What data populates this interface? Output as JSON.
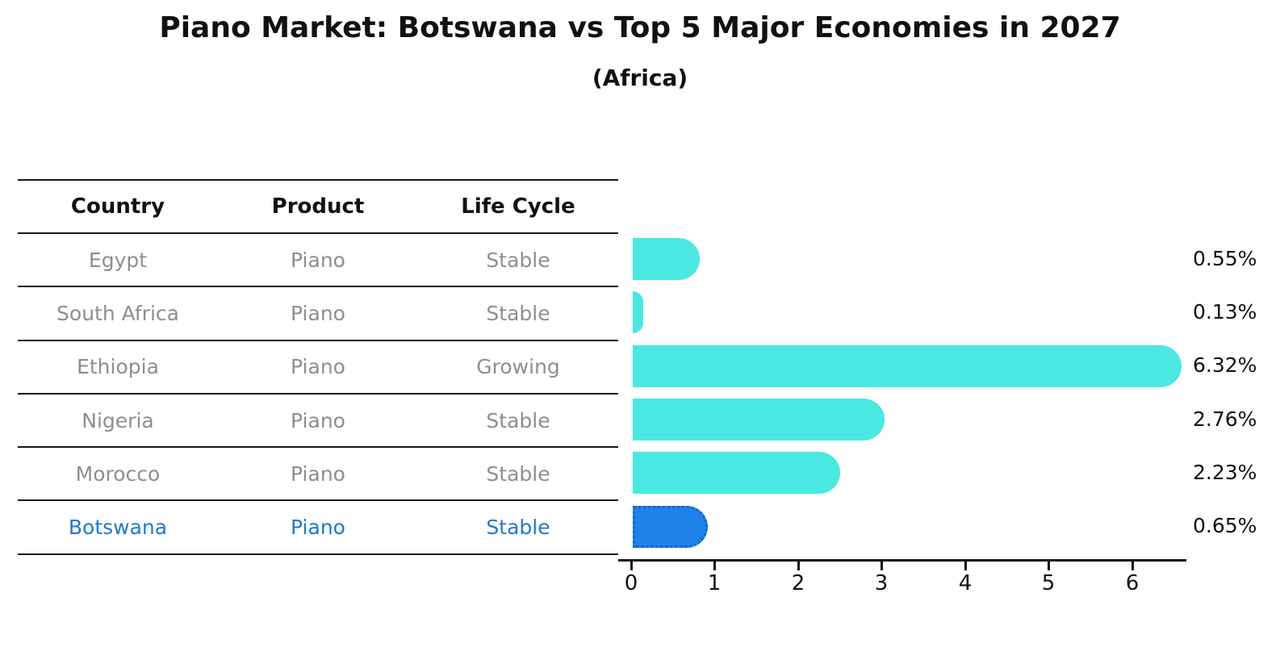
{
  "title": "Piano Market: Botswana vs Top 5 Major Economies in 2027",
  "subtitle": "(Africa)",
  "table": {
    "columns": [
      "Country",
      "Product",
      "Life Cycle"
    ],
    "rows": [
      {
        "country": "Egypt",
        "product": "Piano",
        "life_cycle": "Stable",
        "highlight": false
      },
      {
        "country": "South Africa",
        "product": "Piano",
        "life_cycle": "Stable",
        "highlight": false
      },
      {
        "country": "Ethiopia",
        "product": "Piano",
        "life_cycle": "Growing",
        "highlight": false
      },
      {
        "country": "Nigeria",
        "product": "Piano",
        "life_cycle": "Stable",
        "highlight": false
      },
      {
        "country": "Morocco",
        "product": "Piano",
        "life_cycle": "Stable",
        "highlight": false
      },
      {
        "country": "Botswana",
        "product": "Piano",
        "life_cycle": "Stable",
        "highlight": true
      }
    ]
  },
  "chart_data": {
    "type": "bar",
    "orientation": "horizontal",
    "title": "Piano Market: Botswana vs Top 5 Major Economies in 2027",
    "subtitle": "(Africa)",
    "categories": [
      "Egypt",
      "South Africa",
      "Ethiopia",
      "Nigeria",
      "Morocco",
      "Botswana"
    ],
    "values": [
      0.55,
      0.13,
      6.32,
      2.76,
      2.23,
      0.65
    ],
    "value_labels": [
      "0.55%",
      "0.13%",
      "6.32%",
      "2.76%",
      "2.23%",
      "0.65%"
    ],
    "xticks": [
      0,
      1,
      2,
      3,
      4,
      5,
      6
    ],
    "xlim": [
      0,
      6.64
    ],
    "grid": false,
    "legend": null,
    "bar_color": "#4ae8e0",
    "highlight_index": 5,
    "highlight_bar_color": "#1f82e8",
    "highlight_border_color": "#1563cc",
    "highlight_text_color": "#2079cf",
    "axis_color": "#111111",
    "text_color": "#8e8e8e"
  }
}
